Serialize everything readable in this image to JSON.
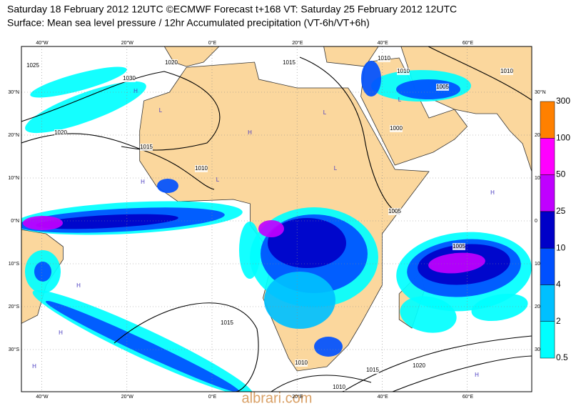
{
  "header": {
    "title": "Saturday 18 February 2012 12UTC ©ECMWF Forecast t+168 VT: Saturday 25 February 2012 12UTC",
    "subtitle": "Surface: Mean sea level pressure / 12hr Accumulated precipitation (VT-6h/VT+6h)"
  },
  "map": {
    "lon_labels_top": [
      "40°W",
      "20°W",
      "0°E",
      "20°E",
      "40°E",
      "60°E"
    ],
    "lon_labels_bottom": [
      "40°W",
      "20°W",
      "0°E",
      "20°E",
      "40°E",
      "60°E"
    ],
    "lat_labels_left": [
      "30°N",
      "20°N",
      "10°N",
      "0°N",
      "10°S",
      "20°S",
      "30°S"
    ],
    "lat_labels_right": [
      "30°N",
      "20",
      "10",
      "0",
      "10",
      "20",
      "30"
    ],
    "isobars": [
      "1025",
      "1030",
      "1020",
      "1015",
      "1010",
      "1020",
      "1015",
      "1010",
      "1005",
      "1010",
      "1000",
      "1005",
      "1005",
      "1010",
      "1015",
      "1010",
      "1015",
      "1020",
      "1010"
    ],
    "pressure_centers": [
      "H",
      "H",
      "L",
      "L",
      "H",
      "L",
      "H",
      "L",
      "H",
      "H",
      "L",
      "H",
      "H"
    ]
  },
  "colorbar": {
    "levels": [
      0.5,
      2,
      4,
      10,
      25,
      50,
      100,
      300
    ],
    "colors": [
      "#00ffff",
      "#00c0ff",
      "#0050ff",
      "#0000c8",
      "#c000ff",
      "#ff00ff",
      "#ff8000",
      "#ff0000"
    ]
  },
  "watermark": "albrari.com"
}
